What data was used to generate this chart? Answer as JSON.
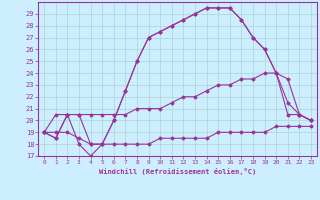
{
  "xlabel": "Windchill (Refroidissement éolien,°C)",
  "bg_color": "#cceeff",
  "grid_color": "#b0d8d8",
  "line_color": "#993399",
  "x_values": [
    0,
    1,
    2,
    3,
    4,
    5,
    6,
    7,
    8,
    9,
    10,
    11,
    12,
    13,
    14,
    15,
    16,
    17,
    18,
    19,
    20,
    21,
    22,
    23
  ],
  "main_curve": [
    19,
    18.5,
    20.5,
    20.5,
    18,
    18,
    20,
    22.5,
    25,
    27,
    27.5,
    28,
    28.5,
    29,
    29.5,
    29.5,
    29.5,
    28.5,
    27,
    26,
    24,
    23.5,
    20.5,
    20
  ],
  "dip_curve": [
    19,
    18.5,
    20.5,
    18,
    17,
    18,
    20,
    22.5,
    25,
    27,
    27.5,
    28,
    28.5,
    29,
    29.5,
    29.5,
    29.5,
    28.5,
    27,
    26,
    24,
    20.5,
    20.5,
    20
  ],
  "mid_curve": [
    19,
    20.5,
    20.5,
    20.5,
    20.5,
    20.5,
    20.5,
    20.5,
    21,
    21,
    21,
    21.5,
    22,
    22,
    22.5,
    23,
    23,
    23.5,
    23.5,
    24,
    24,
    21.5,
    20.5,
    20
  ],
  "low_curve": [
    19,
    19,
    19,
    18.5,
    18,
    18,
    18,
    18,
    18,
    18,
    18.5,
    18.5,
    18.5,
    18.5,
    18.5,
    19,
    19,
    19,
    19,
    19,
    19.5,
    19.5,
    19.5,
    19.5
  ],
  "ylim": [
    17,
    30
  ],
  "xlim": [
    -0.5,
    23.5
  ],
  "yticks": [
    17,
    18,
    19,
    20,
    21,
    22,
    23,
    24,
    25,
    26,
    27,
    28,
    29
  ],
  "xticks": [
    0,
    1,
    2,
    3,
    4,
    5,
    6,
    7,
    8,
    9,
    10,
    11,
    12,
    13,
    14,
    15,
    16,
    17,
    18,
    19,
    20,
    21,
    22,
    23
  ]
}
